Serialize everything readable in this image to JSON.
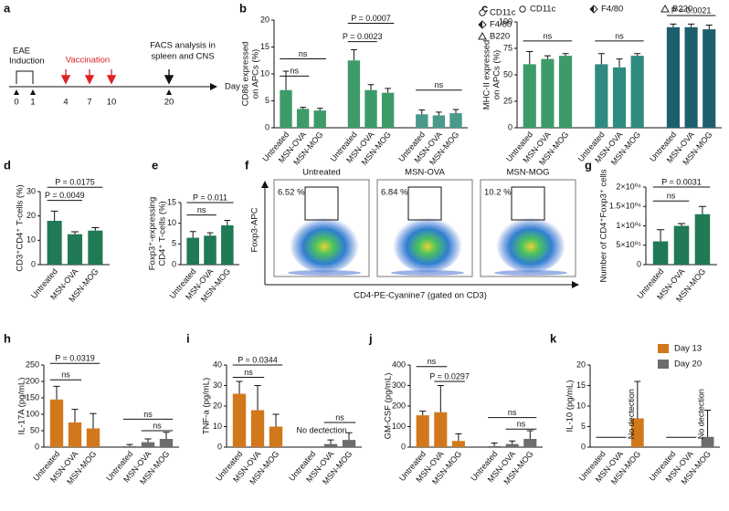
{
  "panel_labels": [
    "a",
    "b",
    "c",
    "d",
    "e",
    "f",
    "g",
    "h",
    "i",
    "j",
    "k"
  ],
  "timeline": {
    "induction": [
      "EAE",
      "Induction"
    ],
    "vaccination": "Vaccination",
    "analysis": [
      "FACS analysis in",
      "spleen and CNS"
    ],
    "axis_label": "Day",
    "days": [
      0,
      1,
      4,
      7,
      10,
      20
    ]
  },
  "flow": {
    "samples": [
      "Untreated",
      "MSN-OVA",
      "MSN-MOG"
    ],
    "gate_percent": [
      "6.52 %",
      "6.84 %",
      "10.2 %"
    ],
    "ylabel": "Foxp3-APC",
    "xlabel": "CD4-PE-Cyanine7 (gated on CD3)"
  },
  "chart_data": [
    {
      "type": "bar",
      "ylabel": [
        "CD86 expressed",
        "on APCs (%)"
      ],
      "categories": [
        "Untreated",
        "MSN-OVA",
        "MSN-MOG"
      ],
      "series": [
        {
          "name": "CD11c",
          "color": "#3d9b6a",
          "values": [
            7,
            3.5,
            3.2
          ],
          "errors": [
            3.5,
            0.3,
            0.4
          ]
        },
        {
          "name": "F4/80",
          "color": "#3d9b6a",
          "values": [
            12.5,
            7,
            6.5
          ],
          "errors": [
            2,
            1,
            0.8
          ]
        },
        {
          "name": "B220",
          "color": "#4a9a8c",
          "values": [
            2.5,
            2.3,
            2.7
          ],
          "errors": [
            0.8,
            0.6,
            0.7
          ]
        }
      ],
      "ylim": [
        0,
        20
      ],
      "yticks": [
        0,
        5,
        10,
        15,
        20
      ],
      "annotations": [
        "ns",
        "ns",
        "P = 0.0007",
        "P = 0.0023",
        "ns"
      ],
      "legend": "upper right"
    },
    {
      "type": "bar",
      "ylabel": [
        "MHC-II expressed",
        "on APCs (%)"
      ],
      "categories": [
        "Untreated",
        "MSN-OVA",
        "MSN-MOG"
      ],
      "series": [
        {
          "name": "CD11c",
          "color": "#3d9b6a",
          "values": [
            60,
            65,
            68
          ],
          "errors": [
            12,
            3,
            2
          ]
        },
        {
          "name": "F4/80",
          "color": "#2f8a80",
          "values": [
            60,
            57,
            68
          ],
          "errors": [
            10,
            8,
            2
          ]
        },
        {
          "name": "B220",
          "color": "#1e5f6e",
          "values": [
            95,
            95,
            93
          ],
          "errors": [
            3,
            3,
            4
          ]
        }
      ],
      "ylim": [
        0,
        100
      ],
      "yticks": [
        0,
        25,
        50,
        75,
        100
      ],
      "annotations": [
        "ns",
        "ns",
        "P = 0.0021"
      ],
      "legend": "top"
    },
    {
      "type": "bar",
      "ylabel": [
        "CD3⁺CD4⁺ T-cells (%)"
      ],
      "categories": [
        "Untreated",
        "MSN-OVA",
        "MSN-MOG"
      ],
      "values": [
        18,
        12.5,
        14
      ],
      "errors": [
        4,
        1,
        1.2
      ],
      "color": "#1f7a55",
      "ylim": [
        0,
        30
      ],
      "yticks": [
        0,
        10,
        20,
        30
      ],
      "annotations": [
        "P = 0.0049",
        "P = 0.0175"
      ]
    },
    {
      "type": "bar",
      "ylabel": [
        "Foxp3⁺-expressing",
        "CD4⁺ T-cells (%)"
      ],
      "categories": [
        "Untreated",
        "MSN-OVA",
        "MSN-MOG"
      ],
      "values": [
        6.5,
        7,
        9.5
      ],
      "errors": [
        1.5,
        0.7,
        1.2
      ],
      "color": "#1f7a55",
      "ylim": [
        0,
        15
      ],
      "yticks": [
        0,
        5,
        10,
        15
      ],
      "annotations": [
        "ns",
        "P = 0.011"
      ]
    },
    {
      "type": "bar",
      "ylabel": [
        "Number of CD4⁺Foxp3⁺ cells"
      ],
      "categories": [
        "Untreated",
        "MSN-OVA",
        "MSN-MOG"
      ],
      "values": [
        600000,
        1000000,
        1300000
      ],
      "errors": [
        300000,
        60000,
        200000
      ],
      "color": "#1f7a55",
      "ylim": [
        0,
        2000000
      ],
      "yticks": [
        0,
        {
          "value": 500000,
          "label": "5×10⁰⁵"
        },
        {
          "value": 1000000,
          "label": "1×10⁰⁶"
        },
        {
          "value": 1500000,
          "label": "1.5×10⁰⁶"
        },
        {
          "value": 2000000,
          "label": "2×10⁰⁶"
        }
      ],
      "annotations": [
        "ns",
        "P = 0.0031"
      ]
    },
    {
      "type": "bar",
      "ylabel": [
        "IL-17A (pg/mL)"
      ],
      "categories": [
        "Untreated",
        "MSN-OVA",
        "MSN-MOG"
      ],
      "series": [
        {
          "name": "Day 13",
          "color": "#d2781c",
          "values": [
            145,
            75,
            57
          ],
          "errors": [
            40,
            40,
            45
          ]
        },
        {
          "name": "Day 20",
          "color": "#6d6d6d",
          "values": [
            3,
            15,
            25
          ],
          "errors": [
            5,
            10,
            20
          ]
        }
      ],
      "ylim": [
        0,
        250
      ],
      "yticks": [
        0,
        50,
        100,
        150,
        200,
        250
      ],
      "annotations": [
        "P = 0.0319",
        "ns",
        "ns",
        "ns"
      ],
      "legend": "none"
    },
    {
      "type": "bar",
      "ylabel": [
        "TNF-a (pg/mL)"
      ],
      "categories": [
        "Untreated",
        "MSN-OVA",
        "MSN-MOG"
      ],
      "series": [
        {
          "name": "Day 13",
          "color": "#d2781c",
          "values": [
            26,
            18,
            10
          ],
          "errors": [
            6,
            12,
            6
          ]
        },
        {
          "name": "Day 20",
          "color": "#6d6d6d",
          "values": [
            null,
            1.5,
            3.5
          ],
          "errors": [
            null,
            2,
            3.5
          ]
        }
      ],
      "ylim": [
        0,
        40
      ],
      "yticks": [
        0,
        10,
        20,
        30,
        40
      ],
      "annotations": [
        "P = 0.0344",
        "ns",
        "No dectection",
        "ns"
      ],
      "legend": "none"
    },
    {
      "type": "bar",
      "ylabel": [
        "GM-CSF (pg/mL)"
      ],
      "categories": [
        "Untreated",
        "MSN-OVA",
        "MSN-MOG"
      ],
      "series": [
        {
          "name": "Day 13",
          "color": "#d2781c",
          "values": [
            155,
            170,
            30
          ],
          "errors": [
            20,
            130,
            35
          ]
        },
        {
          "name": "Day 20",
          "color": "#6d6d6d",
          "values": [
            5,
            15,
            40
          ],
          "errors": [
            15,
            15,
            40
          ]
        }
      ],
      "ylim": [
        0,
        400
      ],
      "yticks": [
        0,
        100,
        200,
        300,
        400
      ],
      "annotations": [
        "ns",
        "P = 0.0297",
        "ns",
        "ns"
      ],
      "legend": "none"
    },
    {
      "type": "bar",
      "ylabel": [
        "IL-10 (pg/mL)"
      ],
      "categories": [
        "Untreated",
        "MSN-OVA",
        "MSN-MOG"
      ],
      "series": [
        {
          "name": "Day 13",
          "color": "#d2781c",
          "values": [
            null,
            null,
            7
          ],
          "errors": [
            null,
            null,
            9
          ]
        },
        {
          "name": "Day 20",
          "color": "#6d6d6d",
          "values": [
            null,
            null,
            2.5
          ],
          "errors": [
            null,
            null,
            6.5
          ]
        }
      ],
      "ylim": [
        0,
        20
      ],
      "yticks": [
        0,
        5,
        10,
        15,
        20
      ],
      "annotations": [
        "No dectection",
        "No dectection"
      ],
      "legend": "upper right"
    }
  ]
}
